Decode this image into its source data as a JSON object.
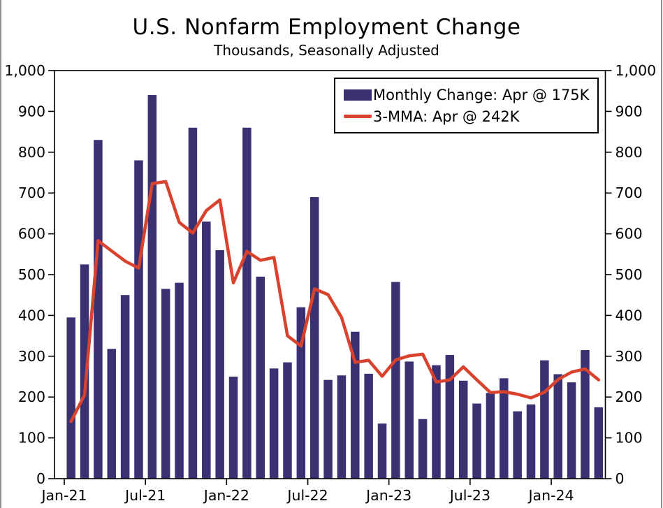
{
  "page": {
    "title": "U.S. Nonfarm Employment Change",
    "subtitle": "Thousands, Seasonally Adjusted"
  },
  "legend": {
    "items": [
      {
        "label": "Monthly Change: Apr @ 175K",
        "swatch": "bar",
        "color": "#3a3173"
      },
      {
        "label": "3-MMA: Apr @ 242K",
        "swatch": "line",
        "color": "#d9432e"
      }
    ]
  },
  "colors": {
    "bar": "#3a3173",
    "line": "#d9432e",
    "axis": "#000000",
    "frame_edge": "#909090",
    "background": "#ffffff"
  },
  "chart_data": {
    "type": "bar",
    "title": "U.S. Nonfarm Employment Change",
    "subtitle": "Thousands, Seasonally Adjusted",
    "units": "thousands of jobs, seasonally adjusted",
    "categories": [
      "Jan-21",
      "Feb-21",
      "Mar-21",
      "Apr-21",
      "May-21",
      "Jun-21",
      "Jul-21",
      "Aug-21",
      "Sep-21",
      "Oct-21",
      "Nov-21",
      "Dec-21",
      "Jan-22",
      "Feb-22",
      "Mar-22",
      "Apr-22",
      "May-22",
      "Jun-22",
      "Jul-22",
      "Aug-22",
      "Sep-22",
      "Oct-22",
      "Nov-22",
      "Dec-22",
      "Jan-23",
      "Feb-23",
      "Mar-23",
      "Apr-23",
      "May-23",
      "Jun-23",
      "Jul-23",
      "Aug-23",
      "Sep-23",
      "Oct-23",
      "Nov-23",
      "Dec-23",
      "Jan-24",
      "Feb-24",
      "Mar-24",
      "Apr-24"
    ],
    "series": [
      {
        "name": "Monthly Change",
        "type": "bar",
        "color": "#3a3173",
        "values": [
          395,
          525,
          830,
          318,
          450,
          780,
          940,
          465,
          480,
          860,
          630,
          560,
          250,
          860,
          495,
          270,
          285,
          420,
          690,
          242,
          253,
          360,
          257,
          135,
          482,
          287,
          146,
          278,
          303,
          240,
          184,
          210,
          246,
          165,
          182,
          290,
          256,
          236,
          315,
          175
        ]
      },
      {
        "name": "3-MMA",
        "type": "line",
        "color": "#d9432e",
        "values": [
          140,
          205,
          583,
          558,
          533,
          516,
          723,
          728,
          628,
          602,
          657,
          683,
          480,
          557,
          535,
          542,
          350,
          325,
          465,
          451,
          395,
          285,
          290,
          251,
          291,
          301,
          305,
          237,
          242,
          274,
          242,
          211,
          213,
          207,
          198,
          212,
          243,
          261,
          269,
          242
        ]
      }
    ],
    "x_tick_labels": [
      "Jan-21",
      "Jul-21",
      "Jan-22",
      "Jul-22",
      "Jan-23",
      "Jul-23",
      "Jan-24"
    ],
    "x_tick_every_months": 6,
    "y_ticks": {
      "values": [
        0,
        100,
        200,
        300,
        400,
        500,
        600,
        700,
        800,
        900,
        1000
      ],
      "labels": [
        "0",
        "100",
        "200",
        "300",
        "400",
        "500",
        "600",
        "700",
        "800",
        "900",
        "1,000"
      ],
      "sides": "both"
    },
    "ylim": [
      0,
      1000
    ],
    "grid": false,
    "legend_position": "top-right"
  }
}
